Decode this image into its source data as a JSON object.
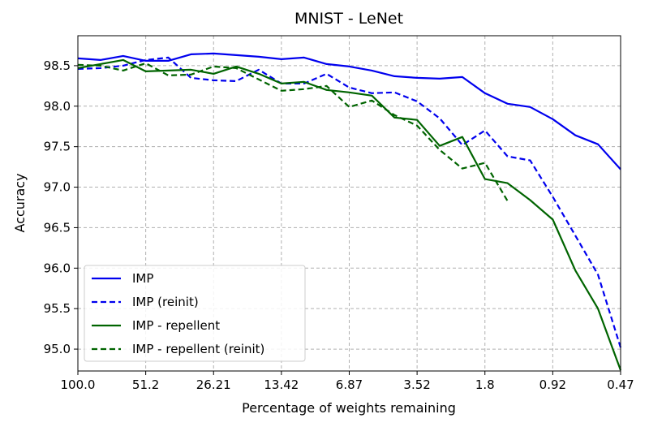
{
  "chart_data": {
    "type": "line",
    "title": "MNIST - LeNet",
    "xlabel": "Percentage of weights remaining",
    "ylabel": "Accuracy",
    "x_tick_labels": [
      "100.0",
      "51.2",
      "26.21",
      "13.42",
      "6.87",
      "3.52",
      "1.8",
      "0.92",
      "0.47"
    ],
    "x_index_range": [
      0,
      24
    ],
    "x": [
      0,
      1,
      2,
      3,
      4,
      5,
      6,
      7,
      8,
      9,
      10,
      11,
      12,
      13,
      14,
      15,
      16,
      17,
      18,
      19,
      20,
      21,
      22,
      23,
      24
    ],
    "ylim": [
      94.73,
      98.87
    ],
    "y_ticks": [
      95.0,
      95.5,
      96.0,
      96.5,
      97.0,
      97.5,
      98.0,
      98.5
    ],
    "y_tick_labels": [
      "95.0",
      "95.5",
      "96.0",
      "96.5",
      "97.0",
      "97.5",
      "98.0",
      "98.5"
    ],
    "grid": true,
    "legend_position": "lower-left",
    "series": [
      {
        "name": "IMP",
        "color": "#0000ee",
        "dash": "solid",
        "values": [
          98.59,
          98.57,
          98.62,
          98.56,
          98.56,
          98.64,
          98.65,
          98.63,
          98.61,
          98.58,
          98.6,
          98.52,
          98.49,
          98.44,
          98.37,
          98.35,
          98.34,
          98.36,
          98.16,
          98.03,
          97.99,
          97.84,
          97.64,
          97.53,
          97.22
        ]
      },
      {
        "name": "IMP (reinit)",
        "color": "#0000ee",
        "dash": "dashed",
        "values": [
          98.46,
          98.47,
          98.5,
          98.57,
          98.6,
          98.35,
          98.32,
          98.31,
          98.45,
          98.28,
          98.28,
          98.4,
          98.23,
          98.16,
          98.17,
          98.06,
          97.85,
          97.52,
          97.7,
          97.38,
          97.33,
          96.88,
          96.4,
          95.92,
          95.02
        ]
      },
      {
        "name": "IMP - repellent",
        "color": "#006400",
        "dash": "solid",
        "values": [
          98.47,
          98.52,
          98.57,
          98.43,
          98.44,
          98.45,
          98.4,
          98.49,
          98.4,
          98.28,
          98.3,
          98.2,
          98.17,
          98.13,
          97.86,
          97.83,
          97.51,
          97.62,
          97.1,
          97.05,
          96.84,
          96.6,
          95.97,
          95.5,
          94.74
        ]
      },
      {
        "name": "IMP - repellent (reinit)",
        "color": "#006400",
        "dash": "dashed",
        "values": [
          98.51,
          98.5,
          98.44,
          98.53,
          98.38,
          98.39,
          98.49,
          98.47,
          98.33,
          98.19,
          98.21,
          98.25,
          97.99,
          98.07,
          97.89,
          97.76,
          97.46,
          97.23,
          97.3,
          96.83,
          null,
          null,
          null,
          null,
          null
        ]
      }
    ]
  }
}
